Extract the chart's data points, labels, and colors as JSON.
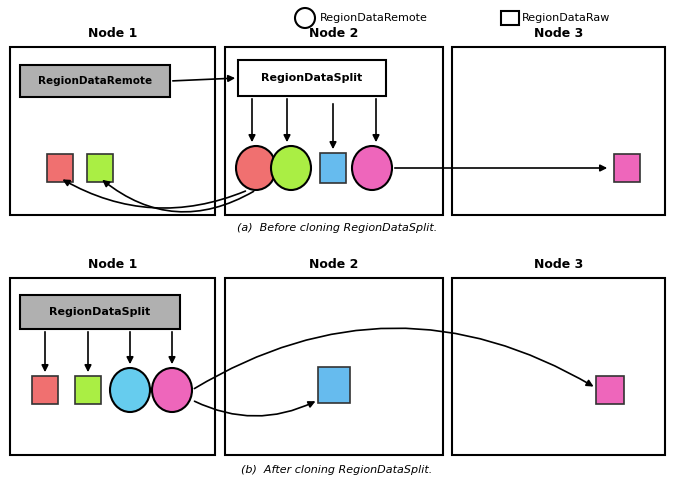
{
  "legend_circle_label": "RegionDataRemote",
  "legend_rect_label": "RegionDataRaw",
  "caption_a": "(a)  Before cloning RegionDataSplit.",
  "caption_b": "(b)  After cloning RegionDataSplit.",
  "gray_box_color": "#b0b0b0",
  "colors": {
    "red": "#f07070",
    "green": "#aaee44",
    "blue": "#66bbee",
    "pink": "#ee66bb",
    "cyan": "#66ccee"
  },
  "bg_color": "white"
}
